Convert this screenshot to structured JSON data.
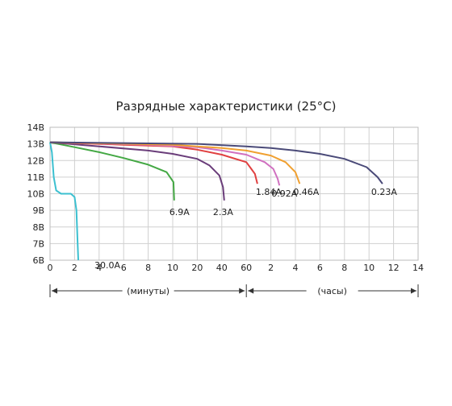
{
  "chart_data": {
    "type": "line",
    "title": "Разрядные характеристики (25°C)",
    "y_ticks": [
      "6В",
      "7В",
      "8В",
      "9В",
      "10В",
      "11В",
      "12В",
      "13В",
      "14В"
    ],
    "ylim": [
      6,
      14
    ],
    "x_ticks": [
      "0",
      "2",
      "4",
      "6",
      "8",
      "10",
      "20",
      "40",
      "60",
      "2",
      "4",
      "6",
      "8",
      "10",
      "12",
      "14"
    ],
    "x_segments": [
      {
        "label": "(минуты)",
        "from": "0",
        "to": "60"
      },
      {
        "label": "(часы)",
        "from": "60",
        "to": "14"
      }
    ],
    "grid": true,
    "series": [
      {
        "name": "30.0A",
        "color": "#3cc0d0",
        "points": [
          [
            0,
            13.1
          ],
          [
            0.15,
            12.5
          ],
          [
            0.3,
            11.0
          ],
          [
            0.5,
            10.2
          ],
          [
            0.9,
            10.0
          ],
          [
            1.7,
            10.0
          ],
          [
            2.0,
            9.8
          ],
          [
            2.15,
            9.0
          ],
          [
            2.25,
            7.0
          ],
          [
            2.3,
            6.0
          ]
        ]
      },
      {
        "name": "6.9A",
        "color": "#44a844",
        "points": [
          [
            0,
            13.1
          ],
          [
            2,
            12.8
          ],
          [
            4,
            12.5
          ],
          [
            6,
            12.15
          ],
          [
            8,
            11.75
          ],
          [
            9.5,
            11.3
          ],
          [
            10.3,
            10.7
          ],
          [
            10.6,
            9.6
          ]
        ]
      },
      {
        "name": "2.3A",
        "color": "#6a3d7a",
        "points": [
          [
            0,
            13.1
          ],
          [
            4,
            12.85
          ],
          [
            8,
            12.6
          ],
          [
            10,
            12.4
          ],
          [
            20,
            12.1
          ],
          [
            30,
            11.7
          ],
          [
            38,
            11.1
          ],
          [
            41,
            10.4
          ],
          [
            42,
            9.6
          ]
        ]
      },
      {
        "name": "1.84A",
        "color": "#e04040",
        "points": [
          [
            0,
            13.1
          ],
          [
            6,
            12.95
          ],
          [
            10,
            12.85
          ],
          [
            20,
            12.65
          ],
          [
            40,
            12.35
          ],
          [
            60,
            11.9
          ],
          [
            0.4,
            11.5
          ],
          [
            0.7,
            11.2
          ],
          [
            0.9,
            10.6
          ]
        ]
      },
      {
        "name": "0.92A",
        "color": "#d070c0",
        "points": [
          [
            0,
            13.1
          ],
          [
            8,
            12.95
          ],
          [
            20,
            12.8
          ],
          [
            40,
            12.6
          ],
          [
            60,
            12.35
          ],
          [
            1.5,
            11.9
          ],
          [
            2.2,
            11.5
          ],
          [
            2.55,
            10.9
          ],
          [
            2.7,
            10.5
          ]
        ]
      },
      {
        "name": "0.46A",
        "color": "#f0a030",
        "points": [
          [
            0,
            13.1
          ],
          [
            10,
            12.95
          ],
          [
            40,
            12.75
          ],
          [
            60,
            12.6
          ],
          [
            2,
            12.3
          ],
          [
            3.2,
            11.9
          ],
          [
            4,
            11.3
          ],
          [
            4.35,
            10.6
          ]
        ]
      },
      {
        "name": "0.23A",
        "color": "#4a4a78",
        "points": [
          [
            0,
            13.1
          ],
          [
            20,
            13.0
          ],
          [
            60,
            12.85
          ],
          [
            2,
            12.75
          ],
          [
            4,
            12.6
          ],
          [
            6,
            12.4
          ],
          [
            8,
            12.1
          ],
          [
            9.8,
            11.6
          ],
          [
            10.7,
            11.0
          ],
          [
            11.1,
            10.6
          ]
        ]
      }
    ]
  }
}
